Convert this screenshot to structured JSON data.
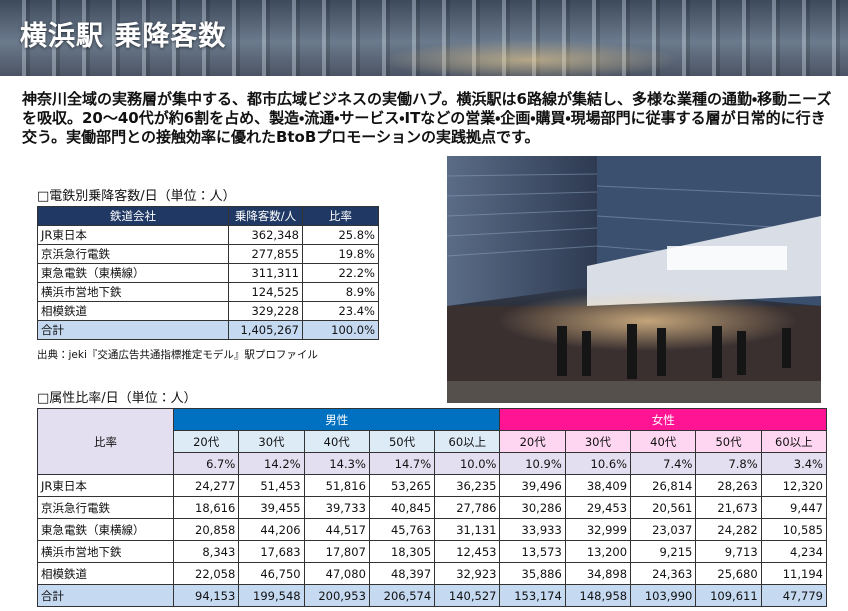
{
  "header": {
    "title": "横浜駅 乗降客数"
  },
  "intro": "神奈川全域の実務層が集中する、都市広域ビジネスの実働ハブ。横浜駅は6路線が集結し、多様な業種の通勤・移動ニーズを吸収。20～40代が約6割を占め、製造・流通・サービス・ITなどの営業・企画・購買・現場部門に従事する層が日常的に行き交う。実働部門との接触効率に優れたBtoBプロモーションの実践拠点です。",
  "table1": {
    "title": "□電鉄別乗降客数/日（単位：人）",
    "columns": [
      "鉄道会社",
      "乗降客数/人",
      "比率"
    ],
    "rows": [
      [
        "JR東日本",
        "362,348",
        "25.8%"
      ],
      [
        "京浜急行電鉄",
        "277,855",
        "19.8%"
      ],
      [
        "東急電鉄（東横線）",
        "311,311",
        "22.2%"
      ],
      [
        "横浜市営地下鉄",
        "124,525",
        "8.9%"
      ],
      [
        "相模鉄道",
        "329,228",
        "23.4%"
      ],
      [
        "合計",
        "1,405,267",
        "100.0%"
      ]
    ],
    "source": "出典：jeki『交通広告共通指標推定モデル』駅プロファイル"
  },
  "table2": {
    "title": "□属性比率/日（単位：人）",
    "corner": "比率",
    "groups": [
      "男性",
      "女性"
    ],
    "ages": [
      [
        "20代",
        "30代",
        "40代",
        "50代",
        "60以上"
      ],
      [
        "20代",
        "30代",
        "40代",
        "50代",
        "60以上"
      ]
    ],
    "ratios": [
      "6.7%",
      "14.2%",
      "14.3%",
      "14.7%",
      "10.0%",
      "10.9%",
      "10.6%",
      "7.4%",
      "7.8%",
      "3.4%"
    ],
    "rows": [
      [
        "JR東日本",
        "24,277",
        "51,453",
        "51,816",
        "53,265",
        "36,235",
        "39,496",
        "38,409",
        "26,814",
        "28,263",
        "12,320"
      ],
      [
        "京浜急行電鉄",
        "18,616",
        "39,455",
        "39,733",
        "40,845",
        "27,786",
        "30,286",
        "29,453",
        "20,561",
        "21,673",
        "9,447"
      ],
      [
        "東急電鉄（東横線）",
        "20,858",
        "44,206",
        "44,517",
        "45,763",
        "31,131",
        "33,933",
        "32,999",
        "23,037",
        "24,282",
        "10,585"
      ],
      [
        "横浜市営地下鉄",
        "8,343",
        "17,683",
        "17,807",
        "18,305",
        "12,453",
        "13,573",
        "13,200",
        "9,215",
        "9,713",
        "4,234"
      ],
      [
        "相模鉄道",
        "22,058",
        "46,750",
        "47,080",
        "48,397",
        "32,923",
        "35,886",
        "34,898",
        "24,363",
        "25,680",
        "11,194"
      ],
      [
        "合計",
        "94,153",
        "199,548",
        "200,953",
        "206,574",
        "140,527",
        "153,174",
        "148,958",
        "103,990",
        "109,611",
        "47,779"
      ]
    ]
  }
}
